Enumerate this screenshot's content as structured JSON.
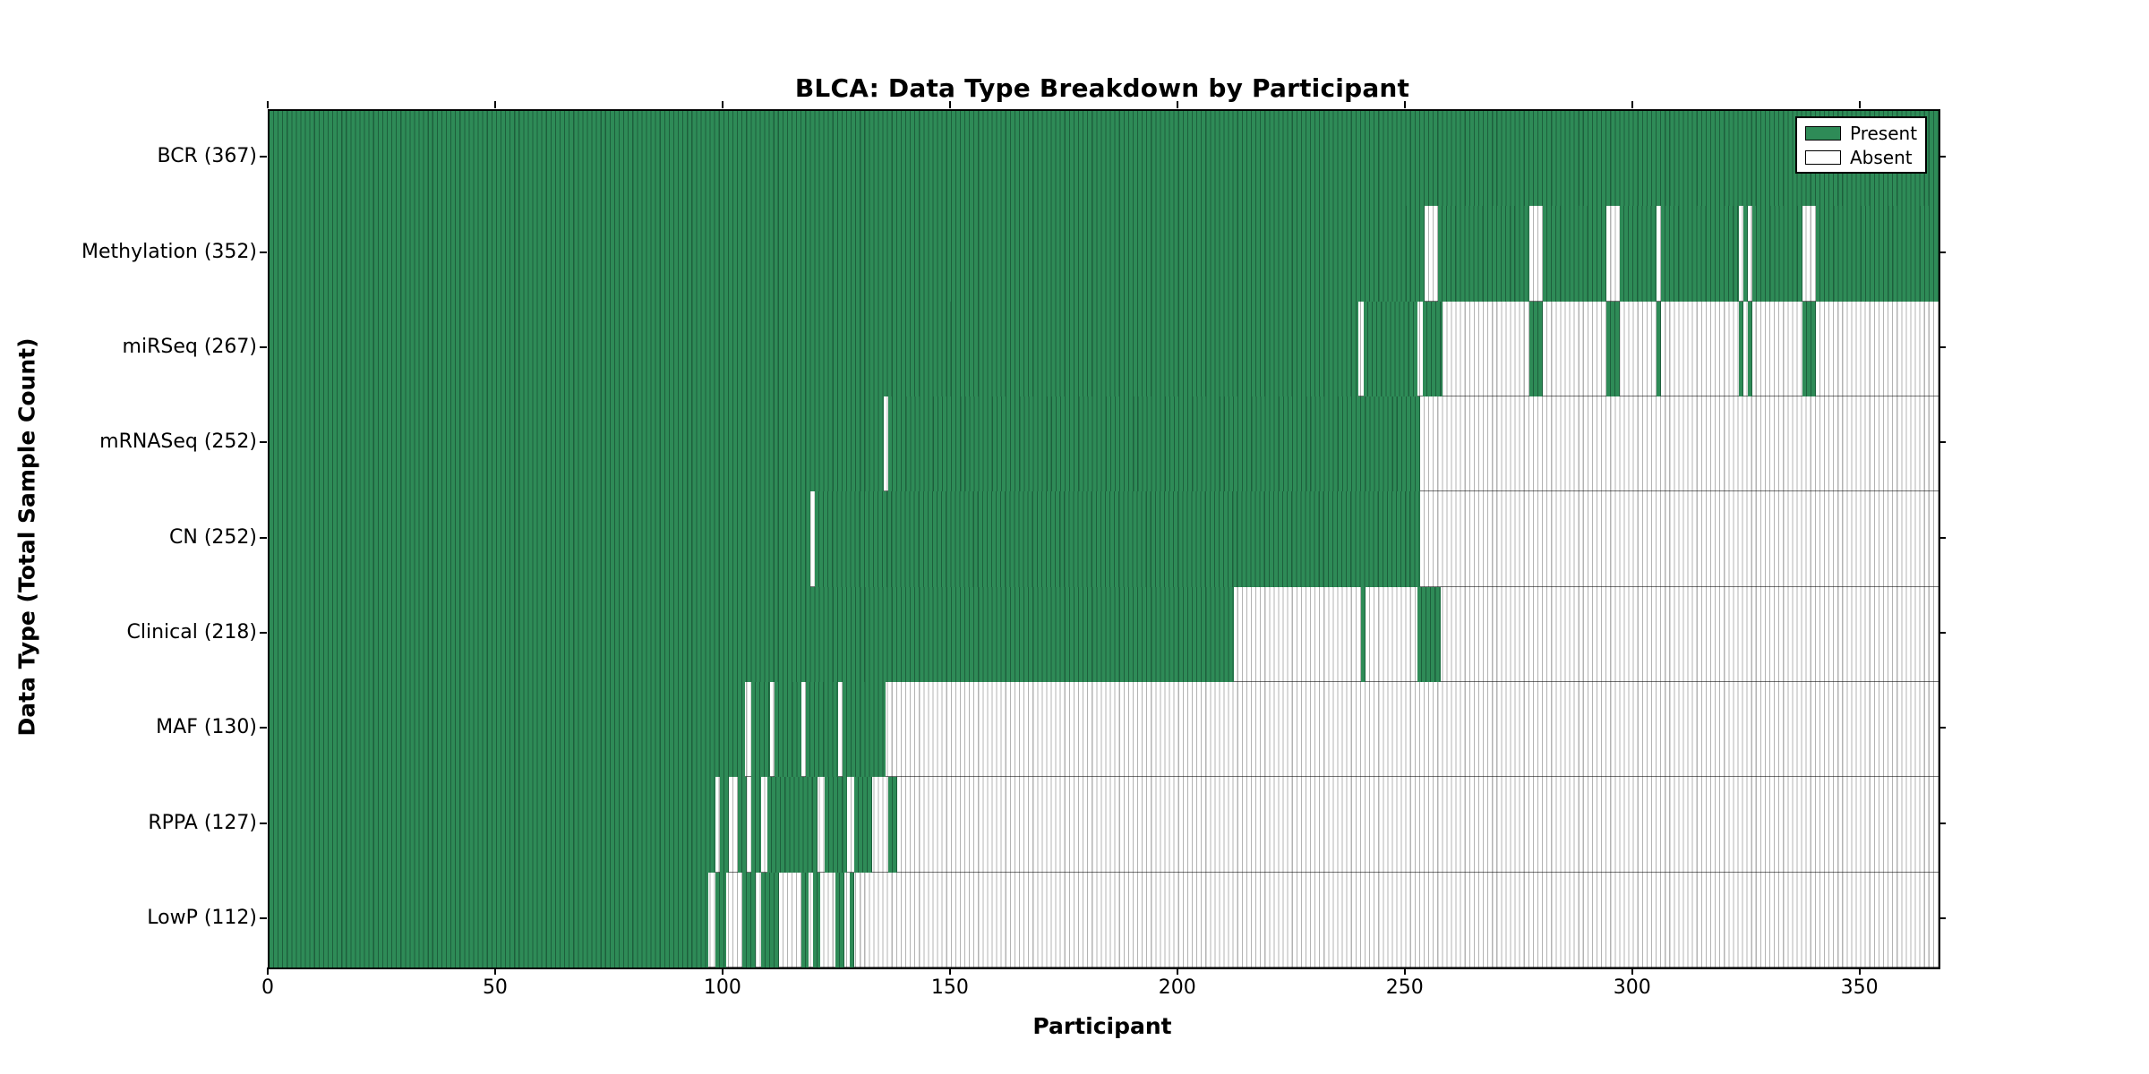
{
  "title": "BLCA: Data Type Breakdown by Participant",
  "x_axis_title": "Participant",
  "y_axis_title": "Data Type (Total Sample Count)",
  "legend": {
    "entries": [
      {
        "label": "Present",
        "color_key": "present"
      },
      {
        "label": "Absent",
        "color_key": "absent"
      }
    ]
  },
  "colors": {
    "present": "#2e8b57",
    "present_stripe": "#1d5f3c",
    "absent": "#ffffff",
    "absent_stripe": "#b3b3b3",
    "row_separator": "rgba(0,0,0,0.55)",
    "axis": "#000000"
  },
  "chart_data": {
    "type": "heatmap",
    "title": "BLCA: Data Type Breakdown by Participant",
    "xlabel": "Participant",
    "ylabel": "Data Type (Total Sample Count)",
    "legend_position": "upper right",
    "x_axis": {
      "min": 0,
      "max": 367,
      "ticks": [
        0,
        50,
        100,
        150,
        200,
        250,
        300,
        350
      ]
    },
    "cell_values": {
      "present": 1,
      "absent": 0
    },
    "rows": [
      {
        "name": "BCR",
        "label": "BCR (367)",
        "total_samples": 367,
        "present_segments": [
          [
            0,
            367
          ]
        ]
      },
      {
        "name": "Methylation",
        "label": "Methylation (352)",
        "total_samples": 352,
        "present_segments": [
          [
            0,
            254
          ],
          [
            257,
            277
          ],
          [
            280,
            294
          ],
          [
            297,
            305
          ],
          [
            306,
            323
          ],
          [
            324,
            325
          ],
          [
            326,
            337
          ],
          [
            340,
            367
          ]
        ]
      },
      {
        "name": "miRSeq",
        "label": "miRSeq (267)",
        "total_samples": 267,
        "present_segments": [
          [
            0,
            239.5
          ],
          [
            240.5,
            252.5
          ],
          [
            253.5,
            258
          ],
          [
            277,
            280
          ],
          [
            294,
            297
          ],
          [
            305,
            306
          ],
          [
            323,
            324
          ],
          [
            325,
            326
          ],
          [
            337,
            340
          ]
        ]
      },
      {
        "name": "mRNASeq",
        "label": "mRNASeq (252)",
        "total_samples": 252,
        "present_segments": [
          [
            0,
            135
          ],
          [
            136,
            253
          ]
        ]
      },
      {
        "name": "CN",
        "label": "CN (252)",
        "total_samples": 252,
        "present_segments": [
          [
            0,
            119
          ],
          [
            120,
            253
          ]
        ]
      },
      {
        "name": "Clinical",
        "label": "Clinical (218)",
        "total_samples": 218,
        "present_segments": [
          [
            0,
            212
          ],
          [
            240,
            241
          ],
          [
            252.5,
            257.5
          ]
        ]
      },
      {
        "name": "MAF",
        "label": "MAF (130)",
        "total_samples": 130,
        "present_segments": [
          [
            0,
            104.5
          ],
          [
            106,
            110
          ],
          [
            111,
            117
          ],
          [
            118,
            125
          ],
          [
            126,
            135.5
          ]
        ]
      },
      {
        "name": "RPPA",
        "label": "RPPA (127)",
        "total_samples": 127,
        "present_segments": [
          [
            0,
            98
          ],
          [
            99,
            101
          ],
          [
            103,
            105
          ],
          [
            106,
            108
          ],
          [
            109.5,
            120.5
          ],
          [
            122,
            127
          ],
          [
            128.5,
            132.5
          ],
          [
            136,
            138
          ]
        ]
      },
      {
        "name": "LowP",
        "label": "LowP (112)",
        "total_samples": 112,
        "present_segments": [
          [
            0,
            96.5
          ],
          [
            98,
            100.5
          ],
          [
            104,
            107
          ],
          [
            108,
            112
          ],
          [
            117,
            118.5
          ],
          [
            119.5,
            121
          ],
          [
            124.5,
            126.5
          ],
          [
            127.5,
            128.5
          ]
        ]
      }
    ]
  }
}
